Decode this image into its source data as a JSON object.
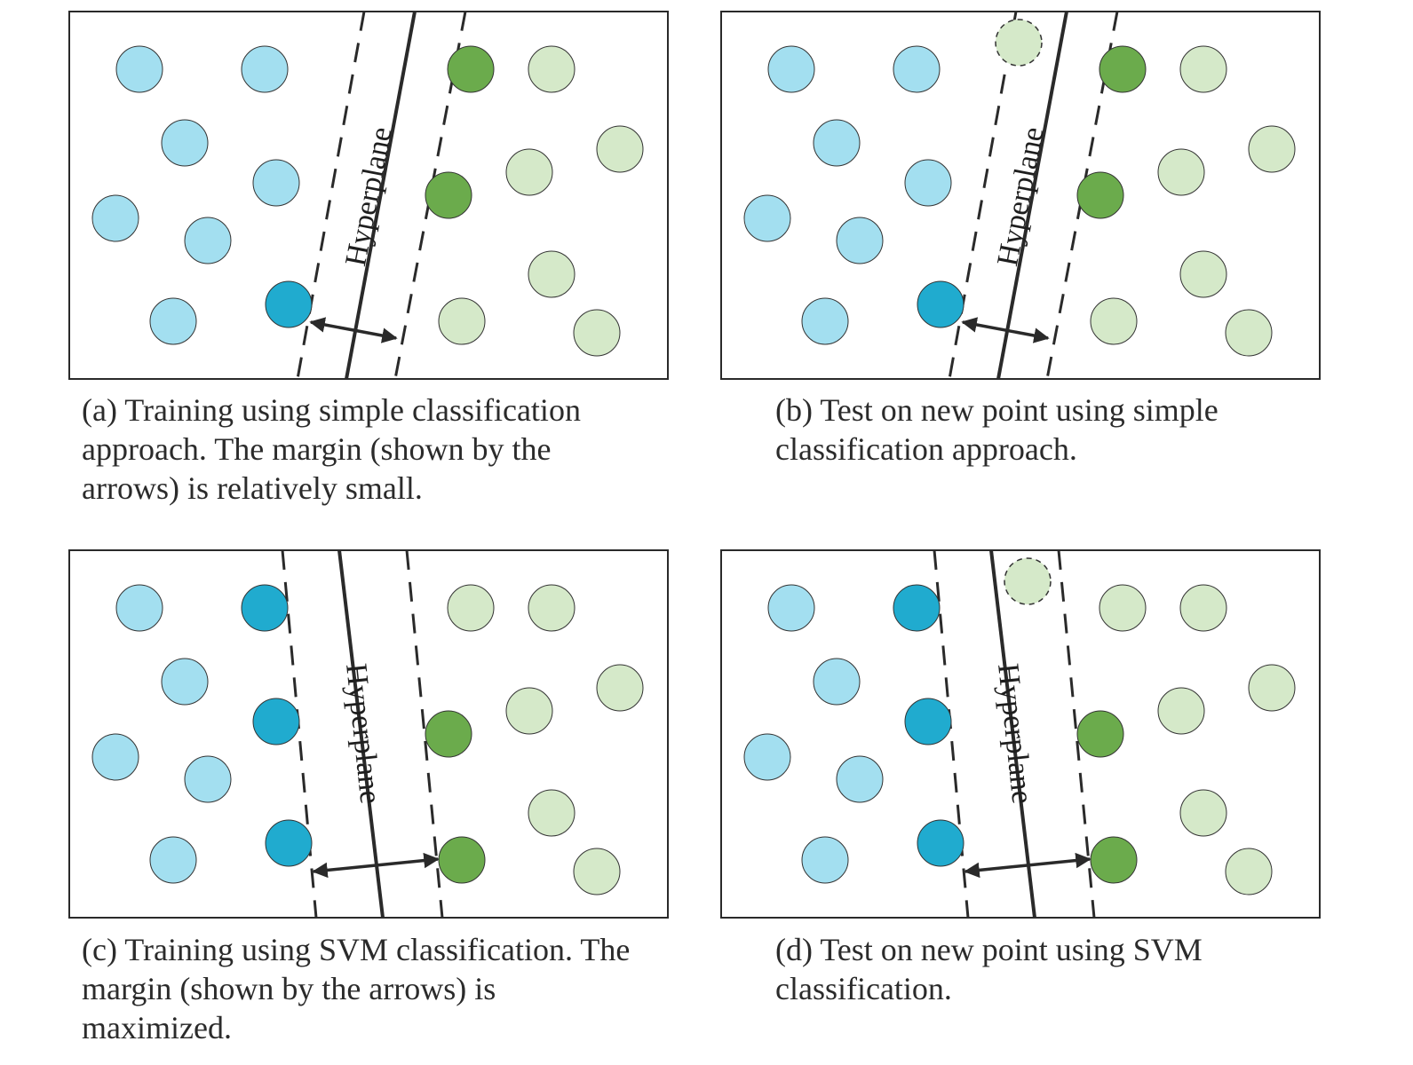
{
  "colors": {
    "class_a": "#a3dff0",
    "class_a_support": "#20abcf",
    "class_b": "#d5e9c9",
    "class_b_support": "#6bab4c",
    "stroke": "#333333",
    "frame": "#2a2a2a",
    "line": "#2a2a2a"
  },
  "figure": {
    "panels": [
      {
        "id": "a",
        "hyperplane_label": "Hyperplane",
        "caption": "(a) Training using simple classification approach. The margin (shown by the arrows) is relatively small."
      },
      {
        "id": "b",
        "hyperplane_label": "Hyperplane",
        "caption": "(b) Test on new point using simple classification approach."
      },
      {
        "id": "c",
        "hyperplane_label": "Hyperplane",
        "caption": "(c) Training using SVM classification. The margin (shown by the arrows) is maximized."
      },
      {
        "id": "d",
        "hyperplane_label": "Hyperplane",
        "caption": "(d) Test on new point using SVM classification."
      }
    ]
  }
}
